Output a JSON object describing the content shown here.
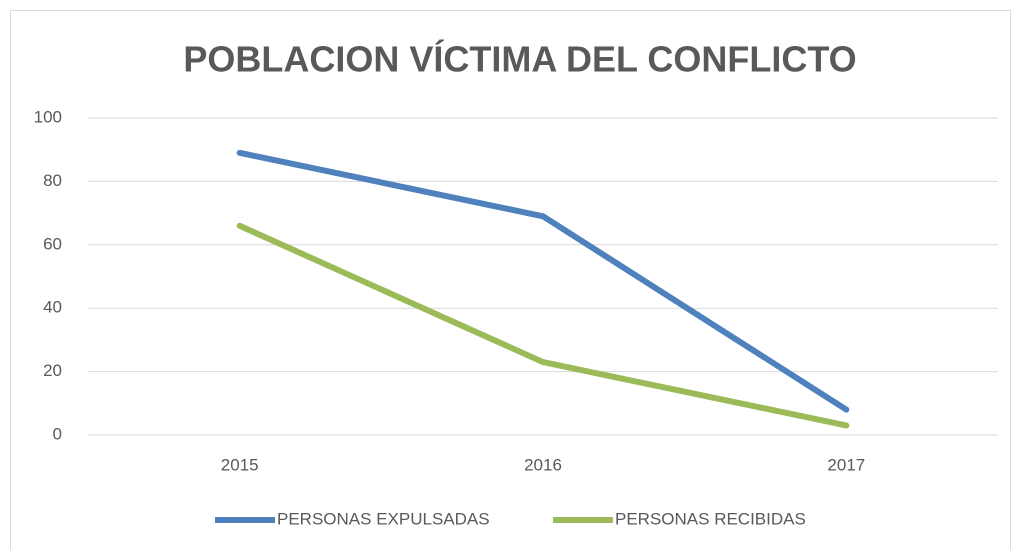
{
  "chart_data": {
    "type": "line",
    "title": "POBLACION VÍCTIMA DEL CONFLICTO",
    "categories": [
      "2015",
      "2016",
      "2017"
    ],
    "series": [
      {
        "name": "PERSONAS EXPULSADAS",
        "color": "#4f81bd",
        "values": [
          89,
          69,
          8
        ]
      },
      {
        "name": "PERSONAS RECIBIDAS",
        "color": "#9bbb59",
        "values": [
          66,
          23,
          3
        ]
      }
    ],
    "ylim": [
      0,
      100
    ],
    "yticks": [
      0,
      20,
      40,
      60,
      80,
      100
    ],
    "grid": true,
    "legend": "bottom"
  }
}
